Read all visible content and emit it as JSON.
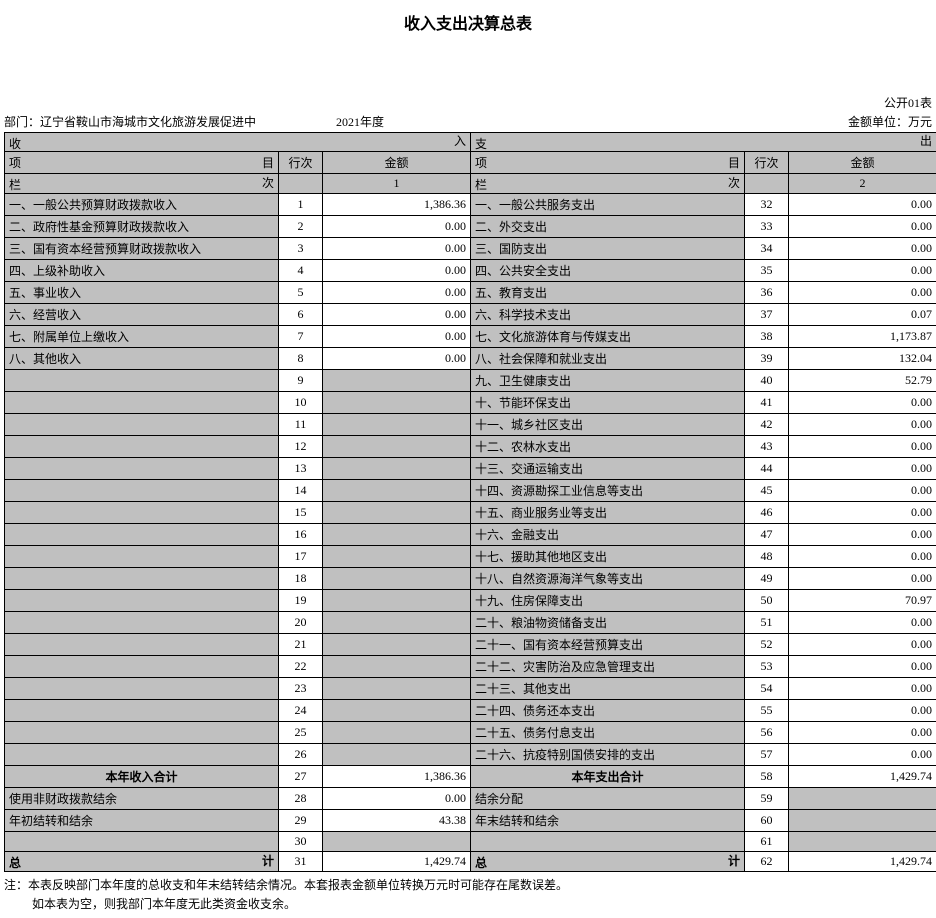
{
  "title": "收入支出决算总表",
  "form_no": "公开01表",
  "dept_label": "部门：",
  "dept": "辽宁省鞍山市海城市文化旅游发展促进中",
  "year": "2021年度",
  "unit": "金额单位：万元",
  "hdr": {
    "income_l": "收",
    "income_r": "入",
    "expend_l": "支",
    "expend_r": "出",
    "item_l": "项",
    "item_r": "目",
    "rownum": "行次",
    "amount": "金额",
    "col_l": "栏",
    "col_r": "次",
    "col1": "1",
    "col2": "2"
  },
  "income_rows": [
    {
      "label": "一、一般公共预算财政拨款收入",
      "n": "1",
      "v": "1,386.36"
    },
    {
      "label": "二、政府性基金预算财政拨款收入",
      "n": "2",
      "v": "0.00"
    },
    {
      "label": "三、国有资本经营预算财政拨款收入",
      "n": "3",
      "v": "0.00"
    },
    {
      "label": "四、上级补助收入",
      "n": "4",
      "v": "0.00"
    },
    {
      "label": "五、事业收入",
      "n": "5",
      "v": "0.00"
    },
    {
      "label": "六、经营收入",
      "n": "6",
      "v": "0.00"
    },
    {
      "label": "七、附属单位上缴收入",
      "n": "7",
      "v": "0.00"
    },
    {
      "label": "八、其他收入",
      "n": "8",
      "v": "0.00"
    },
    {
      "label": "",
      "n": "9",
      "v": ""
    },
    {
      "label": "",
      "n": "10",
      "v": ""
    },
    {
      "label": "",
      "n": "11",
      "v": ""
    },
    {
      "label": "",
      "n": "12",
      "v": ""
    },
    {
      "label": "",
      "n": "13",
      "v": ""
    },
    {
      "label": "",
      "n": "14",
      "v": ""
    },
    {
      "label": "",
      "n": "15",
      "v": ""
    },
    {
      "label": "",
      "n": "16",
      "v": ""
    },
    {
      "label": "",
      "n": "17",
      "v": ""
    },
    {
      "label": "",
      "n": "18",
      "v": ""
    },
    {
      "label": "",
      "n": "19",
      "v": ""
    },
    {
      "label": "",
      "n": "20",
      "v": ""
    },
    {
      "label": "",
      "n": "21",
      "v": ""
    },
    {
      "label": "",
      "n": "22",
      "v": ""
    },
    {
      "label": "",
      "n": "23",
      "v": ""
    },
    {
      "label": "",
      "n": "24",
      "v": ""
    },
    {
      "label": "",
      "n": "25",
      "v": ""
    },
    {
      "label": "",
      "n": "26",
      "v": ""
    }
  ],
  "expend_rows": [
    {
      "label": "一、一般公共服务支出",
      "n": "32",
      "v": "0.00"
    },
    {
      "label": "二、外交支出",
      "n": "33",
      "v": "0.00"
    },
    {
      "label": "三、国防支出",
      "n": "34",
      "v": "0.00"
    },
    {
      "label": "四、公共安全支出",
      "n": "35",
      "v": "0.00"
    },
    {
      "label": "五、教育支出",
      "n": "36",
      "v": "0.00"
    },
    {
      "label": "六、科学技术支出",
      "n": "37",
      "v": "0.07"
    },
    {
      "label": "七、文化旅游体育与传媒支出",
      "n": "38",
      "v": "1,173.87"
    },
    {
      "label": "八、社会保障和就业支出",
      "n": "39",
      "v": "132.04"
    },
    {
      "label": "九、卫生健康支出",
      "n": "40",
      "v": "52.79"
    },
    {
      "label": "十、节能环保支出",
      "n": "41",
      "v": "0.00"
    },
    {
      "label": "十一、城乡社区支出",
      "n": "42",
      "v": "0.00"
    },
    {
      "label": "十二、农林水支出",
      "n": "43",
      "v": "0.00"
    },
    {
      "label": "十三、交通运输支出",
      "n": "44",
      "v": "0.00"
    },
    {
      "label": "十四、资源勘探工业信息等支出",
      "n": "45",
      "v": "0.00"
    },
    {
      "label": "十五、商业服务业等支出",
      "n": "46",
      "v": "0.00"
    },
    {
      "label": "十六、金融支出",
      "n": "47",
      "v": "0.00"
    },
    {
      "label": "十七、援助其他地区支出",
      "n": "48",
      "v": "0.00"
    },
    {
      "label": "十八、自然资源海洋气象等支出",
      "n": "49",
      "v": "0.00"
    },
    {
      "label": "十九、住房保障支出",
      "n": "50",
      "v": "70.97"
    },
    {
      "label": "二十、粮油物资储备支出",
      "n": "51",
      "v": "0.00"
    },
    {
      "label": "二十一、国有资本经营预算支出",
      "n": "52",
      "v": "0.00"
    },
    {
      "label": "二十二、灾害防治及应急管理支出",
      "n": "53",
      "v": "0.00"
    },
    {
      "label": "二十三、其他支出",
      "n": "54",
      "v": "0.00"
    },
    {
      "label": "二十四、债务还本支出",
      "n": "55",
      "v": "0.00"
    },
    {
      "label": "二十五、债务付息支出",
      "n": "56",
      "v": "0.00"
    },
    {
      "label": "二十六、抗疫特别国债安排的支出",
      "n": "57",
      "v": "0.00"
    }
  ],
  "subtotal": {
    "income_label": "本年收入合计",
    "income_n": "27",
    "income_v": "1,386.36",
    "expend_label": "本年支出合计",
    "expend_n": "58",
    "expend_v": "1,429.74"
  },
  "extras": [
    {
      "il": "使用非财政拨款结余",
      "in": "28",
      "iv": "0.00",
      "el": "结余分配",
      "en": "59",
      "ev": ""
    },
    {
      "il": "年初结转和结余",
      "in": "29",
      "iv": "43.38",
      "el": "年末结转和结余",
      "en": "60",
      "ev": ""
    },
    {
      "il": "",
      "in": "30",
      "iv": "",
      "el": "",
      "en": "61",
      "ev": ""
    }
  ],
  "grand": {
    "l": "总",
    "r": "计",
    "in": "31",
    "iv": "1,429.74",
    "en": "62",
    "ev": "1,429.74"
  },
  "note1": "注：本表反映部门本年度的总收支和年末结转结余情况。本套报表金额单位转换万元时可能存在尾数误差。",
  "note2": "如本表为空，则我部门本年度无此类资金收支余。"
}
